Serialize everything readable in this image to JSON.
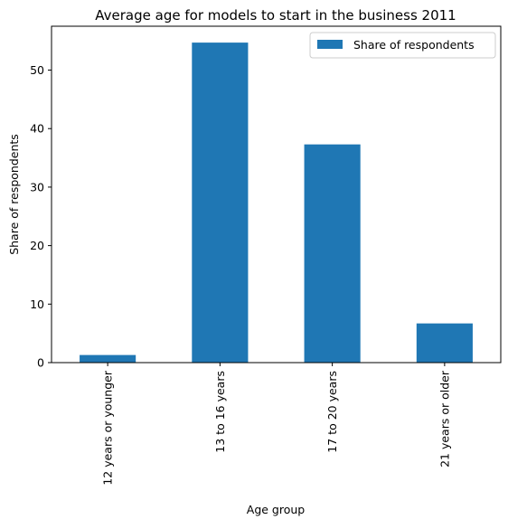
{
  "chart_data": {
    "type": "bar",
    "title": "Average age for models to start in the business 2011",
    "xlabel": "Age group",
    "ylabel": "Share of respondents",
    "categories": [
      "12 years or younger",
      "13 to 16 years",
      "17 to 20 years",
      "21 years or older"
    ],
    "series": [
      {
        "name": "Share of respondents",
        "values": [
          1.3,
          54.7,
          37.3,
          6.7
        ],
        "color": "#1f77b4"
      }
    ],
    "ylim": [
      0,
      57.5
    ],
    "yticks": [
      0,
      10,
      20,
      30,
      40,
      50
    ],
    "grid": false,
    "legend": "top-right"
  }
}
